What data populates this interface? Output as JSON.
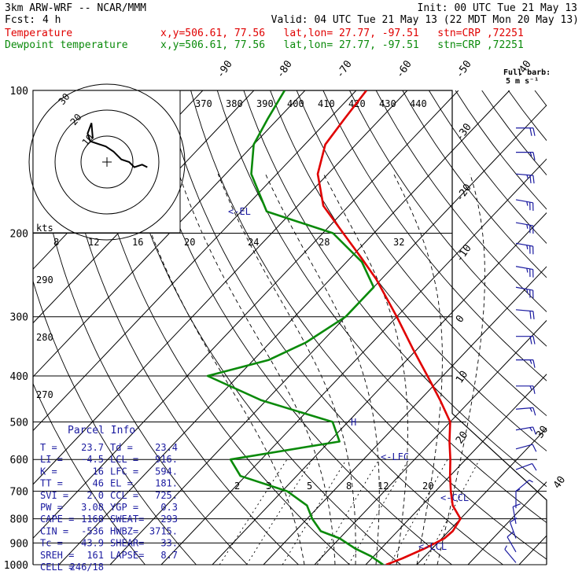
{
  "header": {
    "model": "3km ARW-WRF -- NCAR/MMM",
    "fcst_label": "Fcst:",
    "fcst_value": "4 h",
    "init": "Init: 00 UTC Tue 21 May 13",
    "valid": "Valid: 04 UTC Tue 21 May 13 (22 MDT Mon 20 May 13)",
    "temp_label": "Temperature",
    "dew_label": "Dewpoint temperature",
    "temp_loc": "x,y=506.61, 77.56   lat,lon= 27.77, -97.51   stn=CRP ,72251",
    "dew_loc": "x,y=506.61, 77.56   lat,lon= 27.77, -97.51   stn=CRP ,72251"
  },
  "barb_key": {
    "line1": "Full barb:",
    "line2": "5 m s⁻¹"
  },
  "colors": {
    "temperature": "#e00000",
    "dewpoint": "#0a8a0a",
    "axes": "#000000",
    "wind": "#1a1aa0",
    "hodograph": "#000000",
    "adiabat": "#000000"
  },
  "chart_data": {
    "type": "line",
    "subtype": "skew-T log-p",
    "y_axis": {
      "label": "pressure",
      "ticks": [
        100,
        200,
        300,
        400,
        500,
        600,
        700,
        800,
        900,
        1000
      ],
      "lim": [
        1000,
        100
      ],
      "scale": "log"
    },
    "isotherm_labels": [
      "-90",
      "-80",
      "-70",
      "-60",
      "-50",
      "-40",
      "-30",
      "-20",
      "-10",
      "0",
      "10",
      "20",
      "30",
      "40"
    ],
    "theta_labels": [
      "370",
      "380",
      "390",
      "400",
      "410",
      "420",
      "430",
      "440"
    ],
    "theta_side_labels": [
      "290",
      "280",
      "270"
    ],
    "mixing_labels_upper": [
      "8",
      "12",
      "16",
      "20",
      "24",
      "28",
      "32"
    ],
    "mixing_labels_lower": [
      "2",
      "3",
      "5",
      "8",
      "12",
      "20"
    ],
    "series": [
      {
        "name": "Temperature",
        "points": [
          [
            1000,
            24.0
          ],
          [
            970,
            26.0
          ],
          [
            925,
            28.5
          ],
          [
            880,
            30.5
          ],
          [
            850,
            30.8
          ],
          [
            800,
            30.0
          ],
          [
            750,
            26.0
          ],
          [
            700,
            23.0
          ],
          [
            650,
            20.0
          ],
          [
            600,
            17.0
          ],
          [
            550,
            13.5
          ],
          [
            500,
            10.0
          ],
          [
            450,
            4.0
          ],
          [
            400,
            -3.0
          ],
          [
            350,
            -11.0
          ],
          [
            300,
            -20.0
          ],
          [
            250,
            -31.0
          ],
          [
            225,
            -38.0
          ],
          [
            200,
            -46.0
          ],
          [
            175,
            -55.0
          ],
          [
            150,
            -62.0
          ],
          [
            130,
            -66.0
          ],
          [
            115,
            -67.0
          ],
          [
            100,
            -68.0
          ]
        ]
      },
      {
        "name": "Dewpoint temperature",
        "points": [
          [
            1000,
            23.4
          ],
          [
            960,
            19.5
          ],
          [
            925,
            15.0
          ],
          [
            880,
            10.0
          ],
          [
            850,
            5.0
          ],
          [
            800,
            1.0
          ],
          [
            750,
            -2.5
          ],
          [
            700,
            -9.0
          ],
          [
            650,
            -21.0
          ],
          [
            600,
            -26.0
          ],
          [
            550,
            -8.0
          ],
          [
            500,
            -13.0
          ],
          [
            450,
            -31.0
          ],
          [
            400,
            -46.0
          ],
          [
            370,
            -37.0
          ],
          [
            340,
            -33.0
          ],
          [
            300,
            -30.0
          ],
          [
            260,
            -30.0
          ],
          [
            230,
            -37.0
          ],
          [
            200,
            -48.0
          ],
          [
            180,
            -65.0
          ],
          [
            150,
            -75.0
          ],
          [
            130,
            -80.0
          ],
          [
            115,
            -82.0
          ],
          [
            100,
            -84.0
          ]
        ]
      }
    ],
    "annotations": [
      "<-EL",
      "<-LFC",
      "<-CCL",
      "<-LCL",
      "H"
    ],
    "wind_barbs": [
      {
        "p": 120,
        "dir": 270,
        "spd": 20
      },
      {
        "p": 135,
        "dir": 270,
        "spd": 15
      },
      {
        "p": 150,
        "dir": 275,
        "spd": 25
      },
      {
        "p": 170,
        "dir": 280,
        "spd": 25
      },
      {
        "p": 190,
        "dir": 280,
        "spd": 25
      },
      {
        "p": 210,
        "dir": 280,
        "spd": 25
      },
      {
        "p": 235,
        "dir": 280,
        "spd": 25
      },
      {
        "p": 260,
        "dir": 280,
        "spd": 25
      },
      {
        "p": 290,
        "dir": 275,
        "spd": 20
      },
      {
        "p": 330,
        "dir": 270,
        "spd": 20
      },
      {
        "p": 370,
        "dir": 270,
        "spd": 15
      },
      {
        "p": 420,
        "dir": 270,
        "spd": 15
      },
      {
        "p": 470,
        "dir": 265,
        "spd": 15
      },
      {
        "p": 520,
        "dir": 260,
        "spd": 15
      },
      {
        "p": 570,
        "dir": 255,
        "spd": 10
      },
      {
        "p": 630,
        "dir": 250,
        "spd": 10
      },
      {
        "p": 700,
        "dir": 230,
        "spd": 5
      },
      {
        "p": 760,
        "dir": 180,
        "spd": 5
      },
      {
        "p": 820,
        "dir": 170,
        "spd": 10
      },
      {
        "p": 880,
        "dir": 160,
        "spd": 10
      },
      {
        "p": 940,
        "dir": 150,
        "spd": 10
      },
      {
        "p": 990,
        "dir": 140,
        "spd": 5
      }
    ],
    "hodograph": {
      "ring_labels": [
        "10",
        "20",
        "30"
      ],
      "kts_label": "kts",
      "points": [
        [
          0,
          9
        ],
        [
          -0.5,
          15
        ],
        [
          -2,
          11
        ],
        [
          -1,
          8
        ],
        [
          5,
          6
        ],
        [
          8,
          4
        ],
        [
          11,
          1
        ],
        [
          14,
          0
        ],
        [
          16,
          -2
        ],
        [
          19,
          -1
        ],
        [
          21,
          -2
        ]
      ]
    }
  },
  "parcel_info": {
    "title": "Parcel Info",
    "rows": [
      [
        "T  =",
        "23.7",
        "Td =",
        "23.4"
      ],
      [
        "LI =",
        "-4.5",
        "LCL =",
        "916."
      ],
      [
        "K  =",
        "16",
        "LFC =",
        "594."
      ],
      [
        "TT =",
        "46",
        "EL  =",
        "181."
      ],
      [
        "SVI =",
        "2.0",
        "CCL =",
        "725."
      ],
      [
        "PW =",
        "3.08",
        "YGP =",
        "0.3"
      ],
      [
        "CAPE =",
        "1168",
        "SWEAT=",
        "293"
      ],
      [
        "CIN =",
        "-536",
        "HWBZ=",
        "3715."
      ],
      [
        "Tc =",
        "43.9",
        "SHEAR=",
        "33."
      ],
      [
        "SREH =",
        "161",
        "LAPSE=",
        "8.7"
      ],
      [
        "CELL =",
        "246/18",
        "",
        ""
      ]
    ]
  }
}
